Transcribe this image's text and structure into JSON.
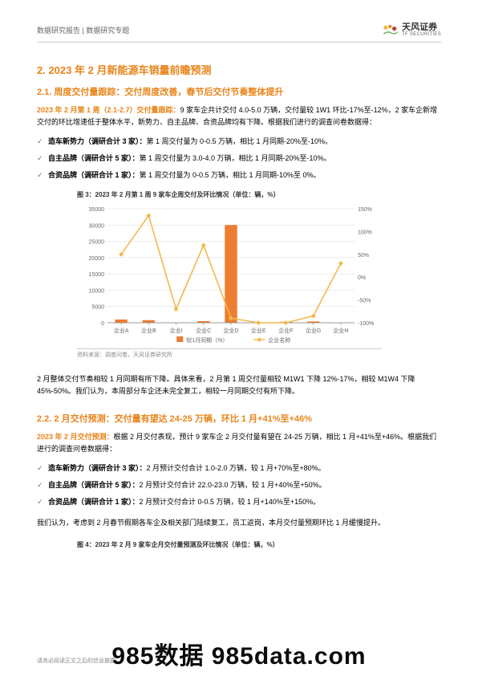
{
  "header": {
    "left": "数据研究报告 | 数据研究专题",
    "brandCn": "天风证券",
    "brandEn": "TF SECURITIES"
  },
  "section2": {
    "title": "2. 2023 年 2 月新能源车销量前瞻预测",
    "s1": {
      "title": "2.1. 周度交付量跟踪：交付周度改善，春节后交付节奏整体提升",
      "lead_em": "2023 年 2 月第 1 周（2.1-2.7）交付量跟踪：",
      "lead_rest": "9 家车企共计交付 4.0-5.0 万辆，交付量较 1W1 环比-17%至-12%，2 家车企新增交付的环比增速低于整体水平，新势力、自主品牌、合资品牌均有下降。根据我们进行的调查问卷数据得：",
      "items": [
        {
          "b": "造车新势力（调研合计 3 家）：",
          "t": "第 1 周交付量为 0-0.5 万辆，相比 1 月同期-20%至-10%。"
        },
        {
          "b": "自主品牌（调研合计 5 家）：",
          "t": "第 1 周交付量为 3.0-4.0 万辆，相比 1 月同期-20%至-10%。"
        },
        {
          "b": "合资品牌（调研合计 1 家）：",
          "t": "第 1 周交付量为 0-0.5 万辆，相比 1 月同期-10%至 0%。"
        }
      ],
      "body": "2 月整体交付节奏相较 1 月同期有所下降。具体来看，2 月第 1 周交付量相较 M1W1 下降 12%-17%，相较 M1W4 下降 45%-50%。我们认为，本周部分车企还未完全复工，相较一月同期交付有所下降。"
    },
    "chart3": {
      "title": "图 3：2023 年 2 月第 1 周 9 家车企周交付及环比情况（单位：辆，%）",
      "source": "资料来源：调查问卷，天风证券研究所",
      "categories": [
        "企业A",
        "企业B",
        "企业I",
        "企业C",
        "企业D",
        "企业E",
        "企业F",
        "企业G",
        "企业H"
      ],
      "left_ticks": [
        0,
        5000,
        10000,
        15000,
        20000,
        25000,
        30000,
        35000
      ],
      "right_ticks": [
        -100,
        -50,
        0,
        50,
        100,
        150
      ],
      "right_tick_labels": [
        "-100%",
        "-50%",
        "0%",
        "50%",
        "100%",
        "150%"
      ],
      "bars": [
        1000,
        800,
        0,
        500,
        30000,
        0,
        300,
        400,
        0
      ],
      "line": [
        50,
        135,
        -70,
        70,
        -90,
        -100,
        -100,
        -85,
        30
      ],
      "legend_bar": "较1月同期（%）",
      "legend_line": "企业名称",
      "bar_color": "#ed7d31",
      "line_color": "#f2b94a",
      "grid_color": "#d9d9d9",
      "axis_color": "#808080",
      "text_color": "#666666"
    },
    "s2": {
      "title": "2.2. 2 月交付预测：交付量有望达 24-25 万辆，环比 1 月+41%至+46%",
      "lead_em": "2023 年 2 月交付预测：",
      "lead_rest": "根据 2 月交付表现，预计 9 家车企 2 月交付量有望在 24-25 万辆，相比 1 月+41%至+46%。根据我们进行的调查问卷数据得：",
      "items": [
        {
          "b": "造车新势力（调研合计 3 家）：",
          "t": "2 月预计交付合计 1.0-2.0 万辆，较 1 月+70%至+80%。"
        },
        {
          "b": "自主品牌（调研合计 5 家）：",
          "t": "2 月预计交付合计 22.0-23.0 万辆，较 1 月+40%至+50%。"
        },
        {
          "b": "合资品牌（调研合计 1 家）：",
          "t": "2 月预计交付合计 0-0.5 万辆，较 1 月+140%至+150%。"
        }
      ],
      "body": "我们认为，考虑到 2 月春节假期各车企及相关部门陆续复工，员工返岗，本月交付量预期环比 1 月缓慢提升。"
    },
    "chart4_title": "图 4：2023 年 2 月 9 家车企月交付量预测及环比情况（单位：辆，%）"
  },
  "footer": "请务必阅读正文之后的信息披露",
  "watermark": "985数据 985data.com"
}
